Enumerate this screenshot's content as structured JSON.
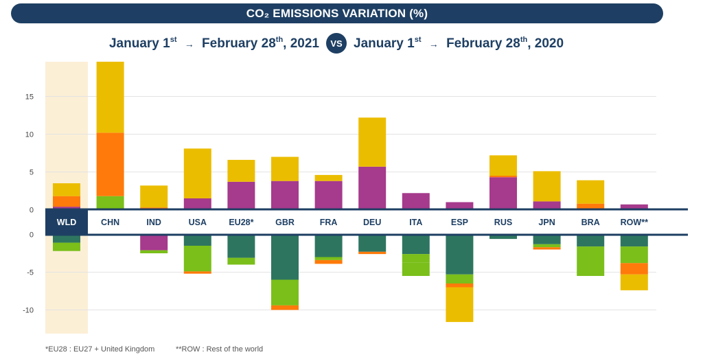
{
  "header": {
    "title": "CO₂ EMISSIONS VARIATION (%)",
    "left_period": {
      "start": "January 1",
      "start_sup": "st",
      "end": "February 28",
      "end_sup": "th",
      "year": ", 2021"
    },
    "vs_label": "VS",
    "right_period": {
      "start": "January 1",
      "start_sup": "st",
      "end": "February 28",
      "end_sup": "th",
      "year": ", 2020"
    }
  },
  "footnotes": {
    "eu28": "*EU28 : EU27 + United Kingdom",
    "row": "**ROW : Rest of the world"
  },
  "chart_data": {
    "type": "bar",
    "stacked": "diverging",
    "categories": [
      "WLD",
      "CHN",
      "IND",
      "USA",
      "EU28*",
      "GBR",
      "FRA",
      "DEU",
      "ITA",
      "ESP",
      "RUS",
      "JPN",
      "BRA",
      "ROW**"
    ],
    "highlighted_category": "WLD",
    "colors": {
      "series_1": "#a63a8c",
      "series_2": "#2e7560",
      "series_3": "#7abf1a",
      "series_4": "#ff7a0a",
      "series_5": "#ebbd00",
      "highlight": "#fbefd6",
      "axis_band": "#1e3f63"
    },
    "series": [
      {
        "values": [
          0.4,
          0,
          0,
          1.5,
          3.7,
          3.8,
          3.8,
          5.7,
          2.2,
          1.0,
          4.3,
          1.1,
          0,
          0.7
        ]
      },
      {
        "values": [
          -1.1,
          0,
          0,
          -1.5,
          -3.1,
          -6.0,
          -3.0,
          -2.3,
          -2.6,
          -5.3,
          -0.6,
          -1.3,
          -1.6,
          -1.6
        ]
      },
      {
        "values": [
          -1.1,
          1.8,
          0,
          -3.4,
          -0.9,
          -3.4,
          -0.4,
          0,
          -1.1,
          -1.2,
          0,
          -0.4,
          -3.9,
          -2.2
        ]
      },
      {
        "values": [
          1.4,
          8.4,
          0.3,
          -0.3,
          0,
          -0.6,
          -0.5,
          -0.3,
          0,
          -0.5,
          0.2,
          -0.3,
          0.8,
          -1.5
        ]
      },
      {
        "values": [
          1.7,
          9.4,
          2.9,
          6.6,
          2.9,
          3.2,
          0.8,
          6.5,
          0,
          -4.6,
          2.7,
          4.0,
          3.1,
          -2.1
        ]
      },
      {
        "values": [
          0,
          0,
          -2.1,
          0,
          0,
          0,
          0,
          0,
          0,
          0,
          0,
          0,
          0,
          0
        ]
      },
      {
        "values": [
          0,
          0,
          -0.4,
          0,
          0,
          0,
          0,
          0,
          -1.8,
          0,
          0,
          0,
          0,
          0
        ]
      }
    ],
    "series_colors": [
      "series_1",
      "series_2",
      "series_3",
      "series_4",
      "series_5",
      "series_1",
      "series_3"
    ],
    "upper_axis": {
      "ticks": [
        0,
        5,
        10,
        15
      ],
      "range": [
        0,
        19.5
      ]
    },
    "lower_axis": {
      "ticks": [
        0,
        -5,
        -10
      ],
      "range": [
        -13.2,
        0
      ]
    },
    "grid": true
  }
}
